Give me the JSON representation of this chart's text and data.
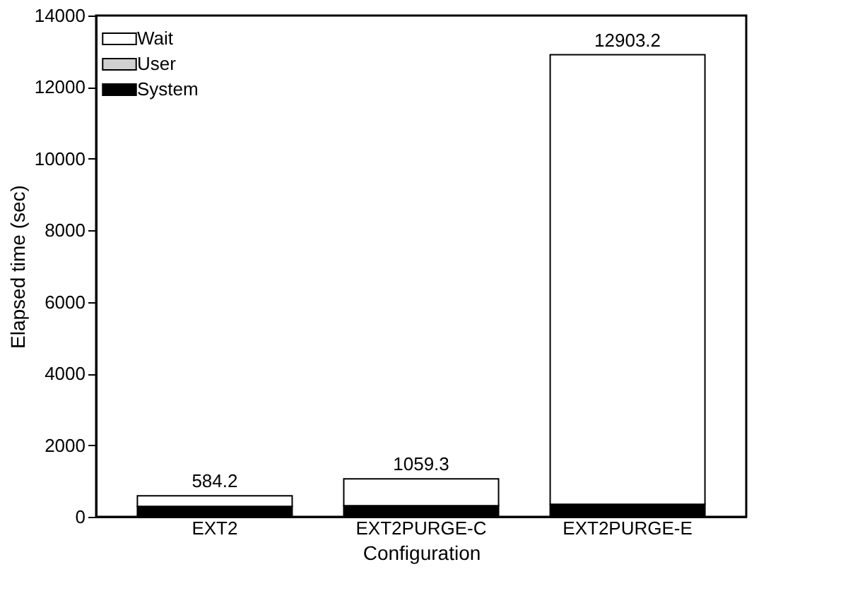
{
  "chart_data": {
    "type": "bar",
    "stacked": true,
    "xlabel": "Configuration",
    "ylabel": "Elapsed time (sec)",
    "categories": [
      "EXT2",
      "EXT2PURGE-C",
      "EXT2PURGE-E"
    ],
    "series": [
      {
        "name": "System",
        "color": "#000000",
        "values": [
          290,
          310,
          350
        ]
      },
      {
        "name": "User",
        "color": "#d0d0d0",
        "values": [
          0,
          0,
          0
        ]
      },
      {
        "name": "Wait",
        "color": "#ffffff",
        "values": [
          294.2,
          749.3,
          12553.2
        ]
      }
    ],
    "totals": [
      "584.2",
      "1059.3",
      "12903.2"
    ],
    "ylim": [
      0,
      14000
    ],
    "yticks": [
      0,
      2000,
      4000,
      6000,
      8000,
      10000,
      12000,
      14000
    ],
    "grid": false,
    "legend": "top left"
  }
}
